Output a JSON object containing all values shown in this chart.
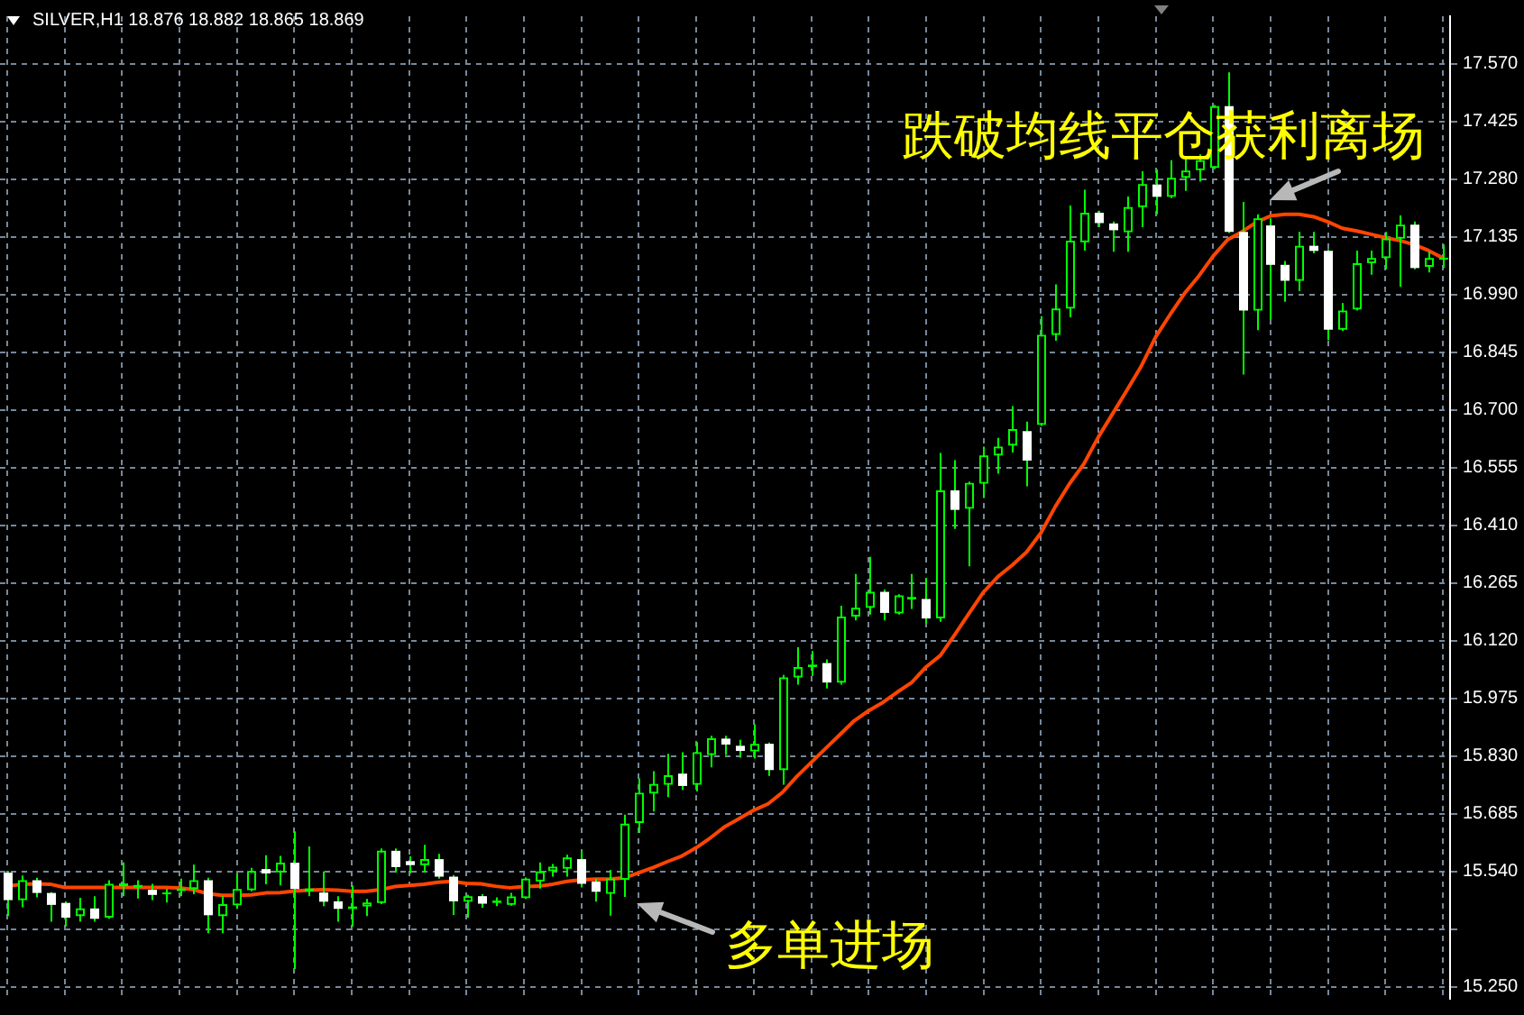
{
  "chart_data": {
    "type": "candlestick",
    "title": "SILVER,H1 18.876 18.882 18.865 18.869",
    "annotations": [
      "跌破均线平仓获利离场",
      "多单进场"
    ],
    "categories": [
      null,
      null,
      null,
      null,
      null,
      null,
      null,
      null,
      null,
      null,
      null,
      null,
      null,
      null,
      null,
      null,
      null,
      null,
      null,
      null,
      null,
      null,
      null,
      null,
      null,
      null,
      null,
      null,
      null,
      null,
      null,
      null,
      null,
      null,
      null,
      null,
      null,
      null,
      null,
      null,
      null,
      null,
      null,
      null,
      null,
      null,
      null,
      null,
      null,
      null,
      null,
      null,
      null,
      null,
      null,
      null,
      null,
      null,
      null,
      null,
      null,
      null,
      null,
      null,
      null,
      null,
      null,
      null,
      null,
      null,
      null,
      null,
      null,
      null,
      null,
      null,
      null,
      null,
      null,
      null,
      null,
      null,
      null,
      null,
      null,
      null,
      null,
      null,
      null,
      null,
      null,
      null,
      null,
      null,
      null,
      null,
      null,
      null,
      null,
      null,
      null
    ],
    "ohlc": [
      [
        15.537,
        15.541,
        15.428,
        15.468
      ],
      [
        15.468,
        15.53,
        15.45,
        15.518
      ],
      [
        15.518,
        15.524,
        15.475,
        15.486
      ],
      [
        15.486,
        15.488,
        15.414,
        15.456
      ],
      [
        15.461,
        15.465,
        15.402,
        15.424
      ],
      [
        15.428,
        15.474,
        15.414,
        15.447
      ],
      [
        15.447,
        15.478,
        15.414,
        15.421
      ],
      [
        15.424,
        15.518,
        15.421,
        15.509
      ],
      [
        15.503,
        15.563,
        15.478,
        15.51
      ],
      [
        15.5,
        15.518,
        15.472,
        15.506
      ],
      [
        15.494,
        15.509,
        15.468,
        15.481
      ],
      [
        15.483,
        15.496,
        15.462,
        15.487
      ],
      [
        15.491,
        15.522,
        15.478,
        15.497
      ],
      [
        15.496,
        15.557,
        15.483,
        15.518
      ],
      [
        15.518,
        15.524,
        15.385,
        15.43
      ],
      [
        15.428,
        15.478,
        15.385,
        15.458
      ],
      [
        15.455,
        15.534,
        15.446,
        15.496
      ],
      [
        15.493,
        15.549,
        15.49,
        15.541
      ],
      [
        15.546,
        15.581,
        15.508,
        15.535
      ],
      [
        15.538,
        15.579,
        15.505,
        15.562
      ],
      [
        15.562,
        15.641,
        15.295,
        15.496
      ],
      [
        15.49,
        15.603,
        15.478,
        15.497
      ],
      [
        15.487,
        15.54,
        15.453,
        15.464
      ],
      [
        15.465,
        15.478,
        15.414,
        15.446
      ],
      [
        15.446,
        15.505,
        15.402,
        15.452
      ],
      [
        15.452,
        15.471,
        15.428,
        15.462
      ],
      [
        15.461,
        15.598,
        15.458,
        15.592
      ],
      [
        15.592,
        15.598,
        15.537,
        15.551
      ],
      [
        15.566,
        15.578,
        15.535,
        15.556
      ],
      [
        15.556,
        15.607,
        15.537,
        15.571
      ],
      [
        15.571,
        15.584,
        15.522,
        15.527
      ],
      [
        15.527,
        15.531,
        15.431,
        15.465
      ],
      [
        15.464,
        15.481,
        15.424,
        15.478
      ],
      [
        15.478,
        15.483,
        15.449,
        15.459
      ],
      [
        15.461,
        15.475,
        15.453,
        15.467
      ],
      [
        15.456,
        15.486,
        15.454,
        15.477
      ],
      [
        15.473,
        15.525,
        15.471,
        15.522
      ],
      [
        15.515,
        15.563,
        15.497,
        15.54
      ],
      [
        15.541,
        15.559,
        15.527,
        15.552
      ],
      [
        15.547,
        15.582,
        15.527,
        15.575
      ],
      [
        15.571,
        15.593,
        15.5,
        15.509
      ],
      [
        15.515,
        15.522,
        15.464,
        15.489
      ],
      [
        15.484,
        15.544,
        15.429,
        15.522
      ],
      [
        15.519,
        15.683,
        15.476,
        15.66
      ],
      [
        15.662,
        15.774,
        15.637,
        15.738
      ],
      [
        15.736,
        15.792,
        15.691,
        15.76
      ],
      [
        15.758,
        15.836,
        15.727,
        15.782
      ],
      [
        15.786,
        15.84,
        15.745,
        15.755
      ],
      [
        15.758,
        15.865,
        15.741,
        15.84
      ],
      [
        15.833,
        15.881,
        15.802,
        15.875
      ],
      [
        15.874,
        15.881,
        15.833,
        15.859
      ],
      [
        15.856,
        15.871,
        15.826,
        15.843
      ],
      [
        15.842,
        15.91,
        15.824,
        15.861
      ],
      [
        15.861,
        15.864,
        15.78,
        15.795
      ],
      [
        15.795,
        16.034,
        15.758,
        16.028
      ],
      [
        16.028,
        16.104,
        16.01,
        16.054
      ],
      [
        16.054,
        16.094,
        16.032,
        16.06
      ],
      [
        16.064,
        16.073,
        16.0,
        16.015
      ],
      [
        16.015,
        16.208,
        16.01,
        16.181
      ],
      [
        16.181,
        16.288,
        16.171,
        16.203
      ],
      [
        16.203,
        16.331,
        16.186,
        16.243
      ],
      [
        16.243,
        16.249,
        16.171,
        16.19
      ],
      [
        16.189,
        16.237,
        16.186,
        16.234
      ],
      [
        16.224,
        16.288,
        16.2,
        16.23
      ],
      [
        16.225,
        16.278,
        16.164,
        16.176
      ],
      [
        16.176,
        16.592,
        16.168,
        16.498
      ],
      [
        16.498,
        16.574,
        16.401,
        16.449
      ],
      [
        16.452,
        16.52,
        16.307,
        16.517
      ],
      [
        16.515,
        16.608,
        16.479,
        16.586
      ],
      [
        16.586,
        16.63,
        16.54,
        16.608
      ],
      [
        16.611,
        16.71,
        16.593,
        16.652
      ],
      [
        16.647,
        16.671,
        16.508,
        16.573
      ],
      [
        16.663,
        16.936,
        16.66,
        16.889
      ],
      [
        16.889,
        17.016,
        16.874,
        16.955
      ],
      [
        16.955,
        17.214,
        16.933,
        17.126
      ],
      [
        17.122,
        17.254,
        17.101,
        17.196
      ],
      [
        17.196,
        17.201,
        17.16,
        17.17
      ],
      [
        17.169,
        17.174,
        17.098,
        17.152
      ],
      [
        17.147,
        17.237,
        17.098,
        17.21
      ],
      [
        17.21,
        17.3,
        17.16,
        17.268
      ],
      [
        17.267,
        17.305,
        17.192,
        17.236
      ],
      [
        17.236,
        17.328,
        17.233,
        17.284
      ],
      [
        17.284,
        17.338,
        17.251,
        17.302
      ],
      [
        17.303,
        17.343,
        17.274,
        17.328
      ],
      [
        17.309,
        17.467,
        17.306,
        17.464
      ],
      [
        17.464,
        17.549,
        17.145,
        17.148
      ],
      [
        17.148,
        17.223,
        16.789,
        16.95
      ],
      [
        16.95,
        17.192,
        16.901,
        17.182
      ],
      [
        17.164,
        17.182,
        16.928,
        17.065
      ],
      [
        17.065,
        17.075,
        16.972,
        17.025
      ],
      [
        17.025,
        17.148,
        16.999,
        17.113
      ],
      [
        17.113,
        17.148,
        17.094,
        17.1
      ],
      [
        17.1,
        17.104,
        16.876,
        16.902
      ],
      [
        16.902,
        16.969,
        16.899,
        16.95
      ],
      [
        16.953,
        17.101,
        16.95,
        17.069
      ],
      [
        17.069,
        17.101,
        17.04,
        17.082
      ],
      [
        17.082,
        17.148,
        17.054,
        17.131
      ],
      [
        17.131,
        17.189,
        17.01,
        17.166
      ],
      [
        17.166,
        17.174,
        17.054,
        17.057
      ],
      [
        17.06,
        17.098,
        17.046,
        17.082
      ],
      [
        17.079,
        17.116,
        17.057,
        17.082
      ]
    ],
    "color": "#00ff00",
    "colors": [
      "#ffffff",
      "#00ff00",
      "#ffffff",
      "#ffffff",
      "#ffffff",
      "#00ff00",
      "#ffffff",
      "#00ff00",
      "#00ff00",
      "#00ff00",
      "#ffffff",
      "#00ff00",
      "#00ff00",
      "#00ff00",
      "#ffffff",
      "#00ff00",
      "#00ff00",
      "#00ff00",
      "#ffffff",
      "#00ff00",
      "#ffffff",
      "#00ff00",
      "#ffffff",
      "#ffffff",
      "#00ff00",
      "#00ff00",
      "#00ff00",
      "#ffffff",
      "#ffffff",
      "#00ff00",
      "#ffffff",
      "#ffffff",
      "#00ff00",
      "#ffffff",
      "#00ff00",
      "#00ff00",
      "#00ff00",
      "#00ff00",
      "#00ff00",
      "#00ff00",
      "#ffffff",
      "#ffffff",
      "#00ff00",
      "#00ff00",
      "#00ff00",
      "#00ff00",
      "#00ff00",
      "#ffffff",
      "#00ff00",
      "#00ff00",
      "#ffffff",
      "#ffffff",
      "#00ff00",
      "#ffffff",
      "#00ff00",
      "#00ff00",
      "#00ff00",
      "#ffffff",
      "#00ff00",
      "#00ff00",
      "#00ff00",
      "#ffffff",
      "#00ff00",
      "#00ff00",
      "#ffffff",
      "#00ff00",
      "#ffffff",
      "#00ff00",
      "#00ff00",
      "#00ff00",
      "#00ff00",
      "#ffffff",
      "#00ff00",
      "#00ff00",
      "#00ff00",
      "#00ff00",
      "#ffffff",
      "#ffffff",
      "#00ff00",
      "#00ff00",
      "#ffffff",
      "#00ff00",
      "#00ff00",
      "#00ff00",
      "#00ff00",
      "#ffffff",
      "#ffffff",
      "#00ff00",
      "#ffffff",
      "#ffffff",
      "#00ff00",
      "#ffffff",
      "#ffffff",
      "#00ff00",
      "#00ff00",
      "#00ff00",
      "#00ff00",
      "#00ff00",
      "#ffffff",
      "#00ff00",
      "#00ff00"
    ],
    "series": [
      {
        "type": "line",
        "color": "#ff4500",
        "values": [
          15.503,
          15.508,
          15.509,
          15.508,
          15.5,
          15.5,
          15.5,
          15.5,
          15.5,
          15.5,
          15.5,
          15.5,
          15.499,
          15.494,
          15.484,
          15.48,
          15.48,
          15.481,
          15.486,
          15.487,
          15.491,
          15.493,
          15.494,
          15.493,
          15.49,
          15.49,
          15.494,
          15.502,
          15.505,
          15.508,
          15.513,
          15.515,
          15.51,
          15.509,
          15.503,
          15.499,
          15.502,
          15.503,
          15.508,
          15.515,
          15.519,
          15.521,
          15.521,
          15.524,
          15.537,
          15.55,
          15.565,
          15.579,
          15.6,
          15.625,
          15.653,
          15.673,
          15.694,
          15.71,
          15.739,
          15.779,
          15.814,
          15.849,
          15.884,
          15.919,
          15.944,
          15.965,
          15.991,
          16.015,
          16.054,
          16.083,
          16.135,
          16.189,
          16.242,
          16.281,
          16.31,
          16.343,
          16.391,
          16.457,
          16.515,
          16.565,
          16.632,
          16.691,
          16.75,
          16.811,
          16.884,
          16.94,
          16.993,
          17.037,
          17.087,
          17.128,
          17.148,
          17.172,
          17.188,
          17.192,
          17.192,
          17.186,
          17.173,
          17.157,
          17.15,
          17.142,
          17.133,
          17.126,
          17.116,
          17.101,
          17.082
        ]
      }
    ],
    "ylim": [
      15.22,
      17.69
    ],
    "yticks": [
      {
        "value": 15.25,
        "label": "15.250"
      },
      {
        "value": 15.395,
        "label": null
      },
      {
        "value": 15.54,
        "label": "15.540"
      },
      15.685,
      {
        "value": 15.83,
        "label": "15.830"
      },
      15.975,
      {
        "value": 16.12,
        "label": "16.120"
      },
      16.265,
      {
        "value": 16.41,
        "label": "16.410"
      },
      16.555,
      {
        "value": 16.7,
        "label": "16.700"
      },
      16.845,
      {
        "value": 16.99,
        "label": "16.990"
      },
      17.135,
      {
        "value": 17.28,
        "label": "17.280"
      },
      17.425,
      {
        "value": 17.57,
        "label": "17.570"
      }
    ],
    "grid": true,
    "tick_labels": "y"
  }
}
